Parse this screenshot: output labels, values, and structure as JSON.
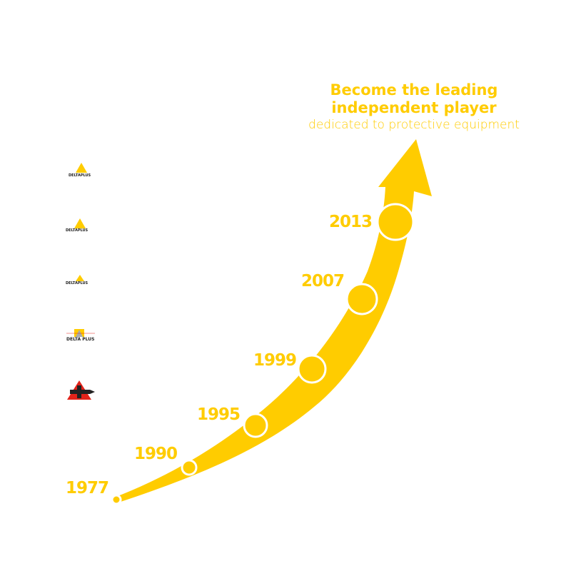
{
  "title": {
    "line1": "Become the leading",
    "line2": "independent player",
    "subtitle": "dedicated to protective equipment"
  },
  "milestones": [
    {
      "year": "1977"
    },
    {
      "year": "1990"
    },
    {
      "year": "1995"
    },
    {
      "year": "1999"
    },
    {
      "year": "2007"
    },
    {
      "year": "2013"
    }
  ],
  "logos": [
    {
      "text": "DELTAPLUS"
    },
    {
      "text": "DELTAPLUS"
    },
    {
      "text": "DELTAPLUS"
    },
    {
      "text": "DELTA PLUS"
    }
  ],
  "colors": {
    "accent": "#ffcc00",
    "logo_red": "#e2231a"
  }
}
